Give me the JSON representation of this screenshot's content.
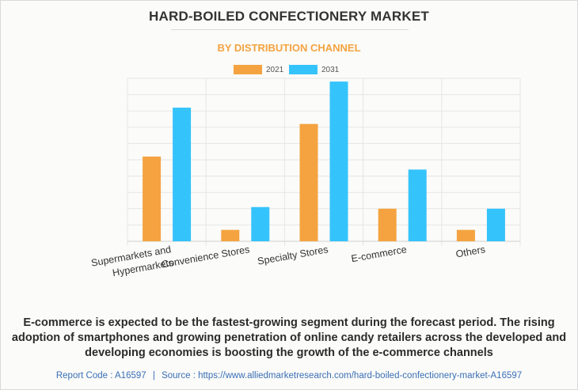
{
  "title": "HARD-BOILED CONFECTIONERY MARKET",
  "subtitle": "BY DISTRIBUTION CHANNEL",
  "description": "E-commerce is expected to be the fastest-growing segment during the forecast period. The rising adoption of smartphones and growing penetration of online candy retailers across the developed and developing economies is boosting the growth of the e-commerce channels",
  "footer": {
    "report_code": "Report Code : A16597",
    "separator": "|",
    "source": "Source : https://www.alliedmarketresearch.com/hard-boiled-confectionery-market-A16597"
  },
  "colors": {
    "series_2021": "#f4a340",
    "series_2031": "#35c3fb"
  },
  "chart_data": {
    "type": "bar",
    "title": "HARD-BOILED CONFECTIONERY MARKET",
    "subtitle": "BY DISTRIBUTION CHANNEL",
    "xlabel": "",
    "ylabel": "",
    "categories": [
      "Supermarkets and Hypermarkets",
      "Convenience Stores",
      "Specialty Stores",
      "E-commerce",
      "Others"
    ],
    "category_label_lines": [
      [
        "Supermarkets and",
        "Hypermarkets"
      ],
      [
        "Convenience Stores"
      ],
      [
        "Specialty Stores"
      ],
      [
        "E-commerce"
      ],
      [
        "Others"
      ]
    ],
    "series": [
      {
        "name": "2021",
        "values": [
          52,
          7,
          72,
          20,
          7
        ]
      },
      {
        "name": "2031",
        "values": [
          82,
          21,
          98,
          44,
          20
        ]
      }
    ],
    "ylim": [
      0,
      100
    ],
    "grid": true,
    "y_tick_labels_shown": false,
    "legend_position": "top-center"
  }
}
